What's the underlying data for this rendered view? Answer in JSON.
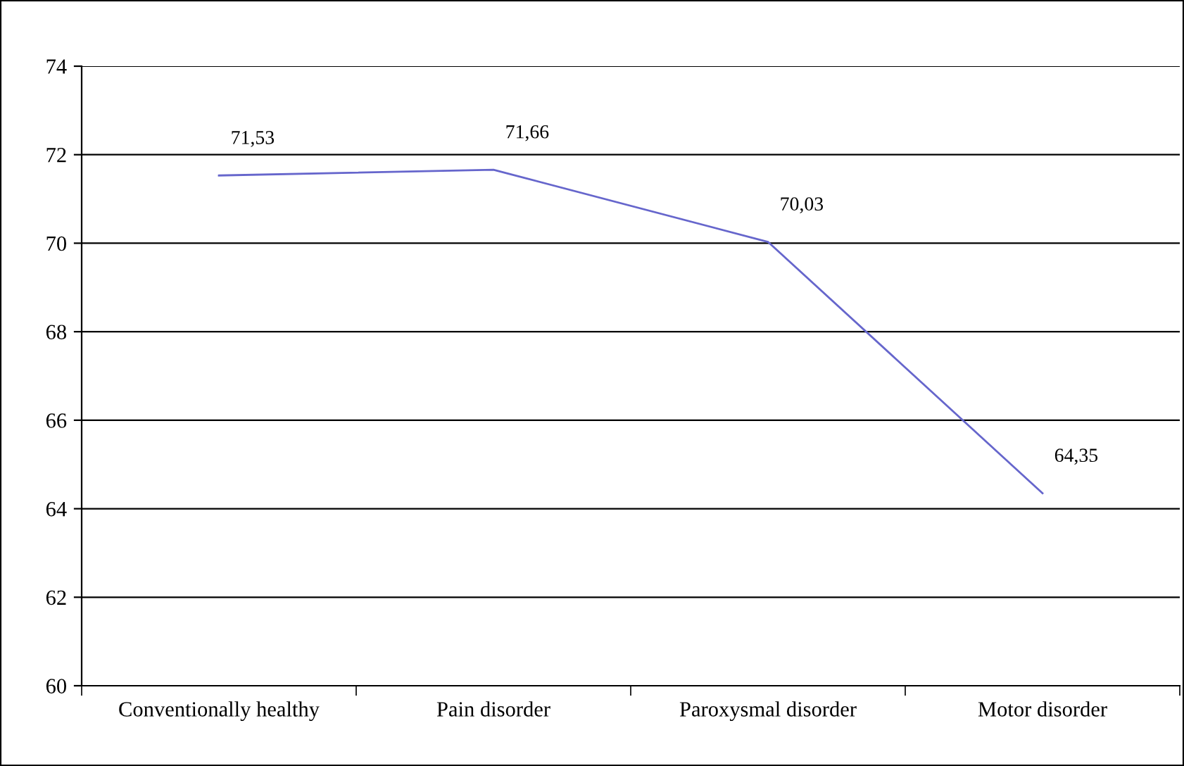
{
  "chart_data": {
    "type": "line",
    "categories": [
      "Conventionally healthy",
      "Pain disorder",
      "Paroxysmal disorder",
      "Motor disorder"
    ],
    "series": [
      {
        "color": "#6666cc",
        "values": [
          71.53,
          71.66,
          70.03,
          64.35
        ],
        "value_labels": [
          "71,53",
          "71,66",
          "70,03",
          "64,35"
        ]
      }
    ],
    "ylim": [
      60,
      74
    ],
    "yticks": [
      60,
      62,
      64,
      66,
      68,
      70,
      72,
      74
    ],
    "grid": "y",
    "marker": "none",
    "line_style": "solid"
  }
}
